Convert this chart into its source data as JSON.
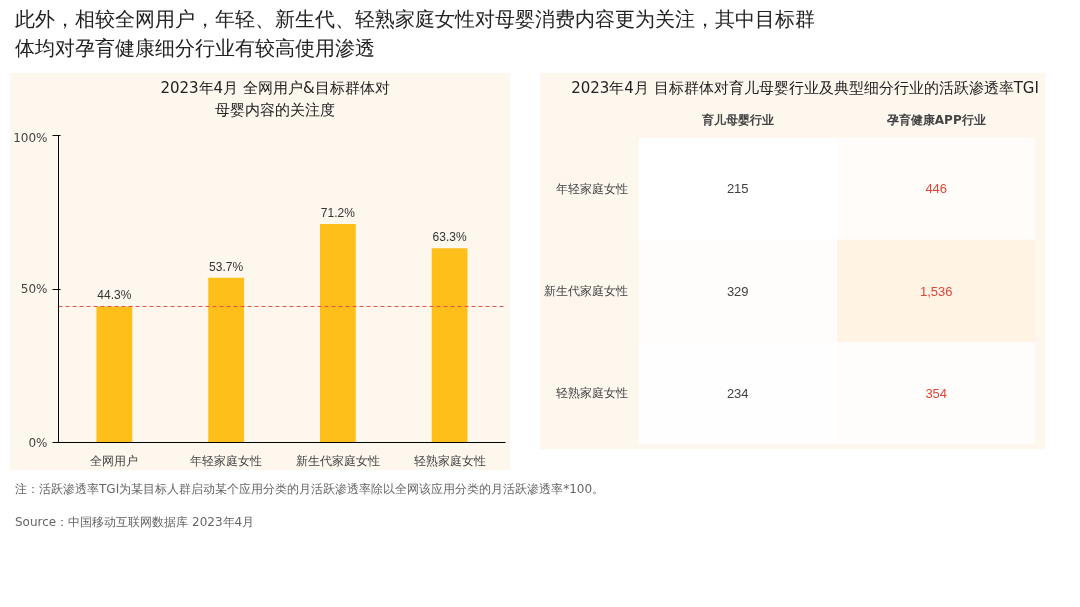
{
  "chart_data": [
    {
      "type": "bar",
      "title": "2023年4月 全网用户&目标群体对母婴内容的关注度",
      "annotations": [
        "此外，相较全网用户，年轻、新生代、轻熟家庭女性对母婴消费内容更为关注，其中目标群体均对孕育健康细分行业有较高使用渗透"
      ],
      "categories": [
        "全网用户",
        "年轻家庭女性",
        "新生代家庭女性",
        "轻熟家庭女性"
      ],
      "values": [
        44.3,
        53.7,
        71.2,
        63.3
      ],
      "value_labels": [
        "44.3%",
        "53.7%",
        "71.2%",
        "63.3%"
      ],
      "color": "#ffbf1a",
      "ylim": [
        0,
        100
      ],
      "yticks": [
        {
          "value": 0,
          "label": "0%"
        },
        {
          "value": 50,
          "label": "50%"
        },
        {
          "value": 100,
          "label": "100%"
        }
      ],
      "ref_lines": [
        {
          "axis": "y",
          "value": 44.3,
          "color": "#e8504a",
          "line_style": "dashed"
        }
      ],
      "grid": false
    },
    {
      "type": "heatmap",
      "title": "2023年4月 目标群体对育儿母婴行业及典型细分行业的活跃渗透率TGI",
      "categories": [
        "育儿母婴行业",
        "孕育健康APP行业"
      ],
      "y_categories": [
        "年轻家庭女性",
        "新生代家庭女性",
        "轻熟家庭女性"
      ],
      "cells": [
        [
          215,
          446
        ],
        [
          329,
          1536
        ],
        [
          234,
          354
        ]
      ],
      "cell_labels": [
        [
          "215",
          "446"
        ],
        [
          "329",
          "1,536"
        ],
        [
          "234",
          "354"
        ]
      ],
      "colors": [
        "#404040",
        "#e0453a"
      ],
      "annotations": [
        "注：活跃渗透率TGI为某目标人群启动某个应用分类的月活跃渗透率除以全网该应用分类的月活跃渗透率*100。",
        "Source：中国移动互联网数据库 2023年4月"
      ]
    }
  ]
}
